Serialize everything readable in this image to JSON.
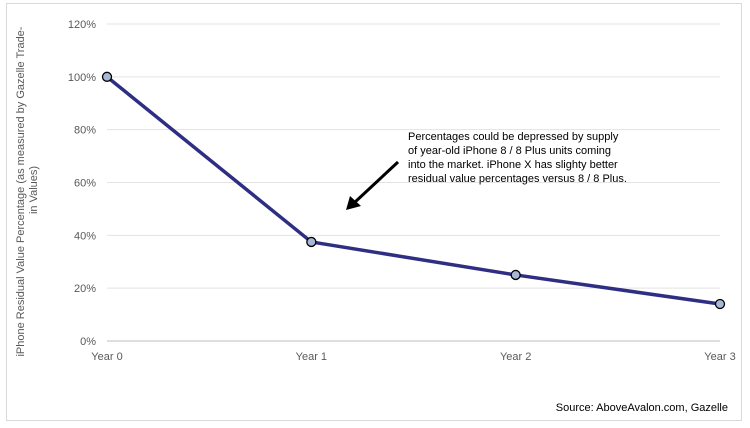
{
  "chart_data": {
    "type": "line",
    "categories": [
      "Year 0",
      "Year 1",
      "Year 2",
      "Year 3"
    ],
    "series": [
      {
        "values": [
          100,
          37.5,
          25,
          14
        ],
        "color": "#2e2e83"
      }
    ],
    "ylabel_lines": [
      "iPhone Residual Value Percentage (as measured by Gazelle Trade-",
      "in Values)"
    ],
    "ylim": [
      0,
      120
    ],
    "yticks": [
      {
        "value": 0,
        "label": "0%"
      },
      {
        "value": 20,
        "label": "20%"
      },
      {
        "value": 40,
        "label": "40%"
      },
      {
        "value": 60,
        "label": "60%"
      },
      {
        "value": 80,
        "label": "80%"
      },
      {
        "value": 100,
        "label": "100%"
      },
      {
        "value": 120,
        "label": "120%"
      }
    ],
    "grid": true,
    "marker_fill": "#a6b8d4",
    "annotation_lines": [
      "Percentages could be depressed by supply",
      "of year-old iPhone 8 / 8 Plus units coming",
      "into the market. iPhone X has slighty better",
      "residual value percentages versus 8 / 8 Plus."
    ],
    "source": "Source: AboveAvalon.com, Gazelle"
  }
}
